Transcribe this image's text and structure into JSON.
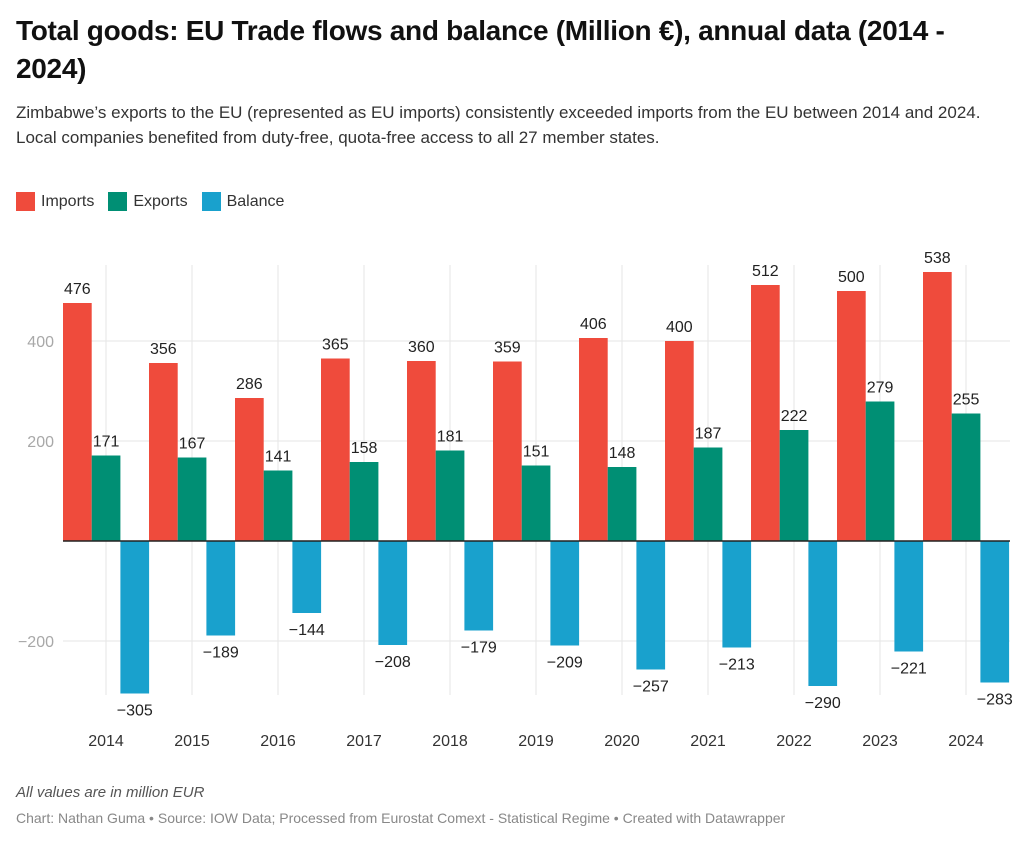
{
  "header": {
    "title": "Total goods: EU Trade flows and balance (Million €), annual data (2014 - 2024)",
    "subtitle": "Zimbabwe’s exports to the EU (represented as EU imports) consistently exceeded imports from the EU between 2014 and 2024. Local companies benefited from duty-free, quota-free access to all 27 member states."
  },
  "legend": [
    {
      "label": "Imports",
      "color": "#ef4b3c"
    },
    {
      "label": "Exports",
      "color": "#008f74"
    },
    {
      "label": "Balance",
      "color": "#19a1cd"
    }
  ],
  "footer": {
    "notes": "All values are in million EUR",
    "byline": "Chart: Nathan Guma • Source: IOW Data; Processed from Eurostat Comext - Statistical Regime • Created with Datawrapper"
  },
  "chart_data": {
    "type": "bar",
    "title": "Total goods: EU Trade flows and balance (Million €), annual data (2014 - 2024)",
    "xlabel": "",
    "ylabel": "",
    "categories": [
      "2014",
      "2015",
      "2016",
      "2017",
      "2018",
      "2019",
      "2020",
      "2021",
      "2022",
      "2023",
      "2024"
    ],
    "series": [
      {
        "name": "Imports",
        "color": "#ef4b3c",
        "values": [
          476,
          356,
          286,
          365,
          360,
          359,
          406,
          400,
          512,
          500,
          538
        ]
      },
      {
        "name": "Exports",
        "color": "#008f74",
        "values": [
          171,
          167,
          141,
          158,
          181,
          151,
          148,
          187,
          222,
          279,
          255
        ]
      },
      {
        "name": "Balance",
        "color": "#19a1cd",
        "values": [
          -305,
          -189,
          -144,
          -208,
          -179,
          -209,
          -257,
          -213,
          -290,
          -221,
          -283
        ]
      }
    ],
    "ylim": [
      -305,
      538
    ],
    "yticks": [
      -200,
      200,
      400
    ],
    "ytick_labels": [
      "−200",
      "200",
      "400"
    ],
    "grid": true,
    "legend_position": "top-left",
    "data_labels": true
  }
}
